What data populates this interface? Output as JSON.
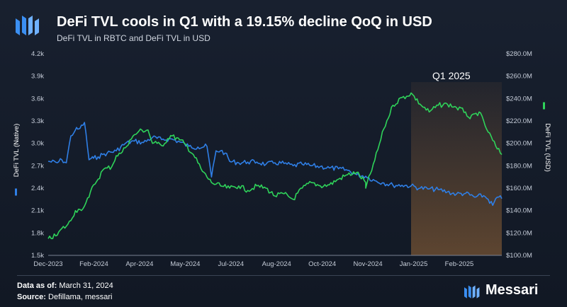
{
  "header": {
    "title": "DeFi TVL cools in Q1 with a 19.15% decline QoQ in USD",
    "subtitle": "DeFi TVL in RBTC and DeFi TVL in USD"
  },
  "footer": {
    "data_as_of_label": "Data as of:",
    "data_as_of_value": "March 31, 2024",
    "source_label": "Source:",
    "source_value": "Defillama, messari"
  },
  "brand": {
    "name": "Messari"
  },
  "colors": {
    "native": "#2f7fe6",
    "usd": "#2fd35a",
    "highlight": "#b97a3c",
    "background": "#151d2a"
  },
  "chart_data": {
    "type": "line",
    "title": "DeFi TVL cools in Q1 with a 19.15% decline QoQ in USD",
    "subtitle": "DeFi TVL in RBTC and DeFi TVL in USD",
    "x_ticks": [
      "Dec-2023",
      "Feb-2024",
      "Apr-2024",
      "May-2024",
      "Jul-2024",
      "Aug-2024",
      "Oct-2024",
      "Nov-2024",
      "Jan-2025",
      "Feb-2025"
    ],
    "y_left": {
      "label": "DeFi TVL (Native)",
      "ticks": [
        "1.5k",
        "1.8k",
        "2.1k",
        "2.4k",
        "2.7k",
        "3.0k",
        "3.3k",
        "3.6k",
        "3.9k",
        "4.2k"
      ],
      "range": [
        1500,
        4200
      ]
    },
    "y_right": {
      "label": "DeFi TVL (USD)",
      "ticks": [
        "$100.0M",
        "$120.0M",
        "$140.0M",
        "$160.0M",
        "$180.0M",
        "$200.0M",
        "$220.0M",
        "$240.0M",
        "$260.0M",
        "$280.0M"
      ],
      "range": [
        100,
        280
      ]
    },
    "highlight": {
      "label": "Q1 2025",
      "from_x": 0.8,
      "to_x": 1.0
    },
    "grid": false,
    "series": [
      {
        "name": "DeFi TVL (Native)",
        "axis": "left",
        "x": [
          0,
          0.02,
          0.03,
          0.04,
          0.05,
          0.06,
          0.065,
          0.07,
          0.08,
          0.09,
          0.095,
          0.1,
          0.11,
          0.12,
          0.13,
          0.15,
          0.17,
          0.19,
          0.21,
          0.23,
          0.25,
          0.27,
          0.29,
          0.31,
          0.33,
          0.35,
          0.36,
          0.37,
          0.38,
          0.39,
          0.4,
          0.42,
          0.44,
          0.46,
          0.48,
          0.5,
          0.52,
          0.54,
          0.56,
          0.58,
          0.6,
          0.62,
          0.64,
          0.66,
          0.68,
          0.7,
          0.72,
          0.74,
          0.76,
          0.78,
          0.8,
          0.82,
          0.84,
          0.86,
          0.88,
          0.9,
          0.92,
          0.94,
          0.96,
          0.97,
          0.98,
          0.99,
          1.0
        ],
        "values": [
          2760,
          2740,
          2780,
          2740,
          3100,
          3180,
          3190,
          3200,
          3280,
          2780,
          2800,
          2800,
          2820,
          2850,
          2870,
          2900,
          3000,
          3030,
          3010,
          3080,
          3050,
          3060,
          3020,
          2960,
          2950,
          2960,
          2550,
          2900,
          2900,
          2870,
          2760,
          2740,
          2750,
          2750,
          2720,
          2740,
          2730,
          2700,
          2720,
          2700,
          2690,
          2670,
          2660,
          2640,
          2580,
          2560,
          2500,
          2470,
          2440,
          2440,
          2430,
          2400,
          2390,
          2380,
          2350,
          2320,
          2330,
          2280,
          2300,
          2250,
          2170,
          2280,
          2260
        ]
      },
      {
        "name": "DeFi TVL (USD)",
        "axis": "right",
        "x": [
          0,
          0.02,
          0.03,
          0.04,
          0.05,
          0.06,
          0.07,
          0.08,
          0.09,
          0.1,
          0.11,
          0.12,
          0.13,
          0.14,
          0.15,
          0.16,
          0.17,
          0.18,
          0.2,
          0.22,
          0.23,
          0.24,
          0.25,
          0.27,
          0.29,
          0.3,
          0.32,
          0.34,
          0.36,
          0.38,
          0.4,
          0.42,
          0.44,
          0.46,
          0.48,
          0.5,
          0.52,
          0.54,
          0.56,
          0.58,
          0.6,
          0.62,
          0.64,
          0.66,
          0.68,
          0.7,
          0.7,
          0.72,
          0.74,
          0.76,
          0.78,
          0.79,
          0.8,
          0.82,
          0.84,
          0.86,
          0.88,
          0.9,
          0.92,
          0.93,
          0.95,
          0.97,
          0.99,
          1.0
        ],
        "values": [
          115,
          118,
          124,
          126,
          131,
          140,
          141,
          144,
          152,
          163,
          168,
          176,
          178,
          179,
          189,
          191,
          196,
          203,
          211,
          212,
          200,
          200,
          198,
          207,
          203,
          200,
          190,
          175,
          165,
          162,
          160,
          162,
          158,
          162,
          160,
          153,
          155,
          150,
          160,
          165,
          162,
          163,
          168,
          172,
          174,
          165,
          160,
          185,
          213,
          234,
          241,
          242,
          245,
          235,
          228,
          234,
          235,
          232,
          228,
          222,
          228,
          210,
          195,
          190
        ]
      }
    ]
  }
}
